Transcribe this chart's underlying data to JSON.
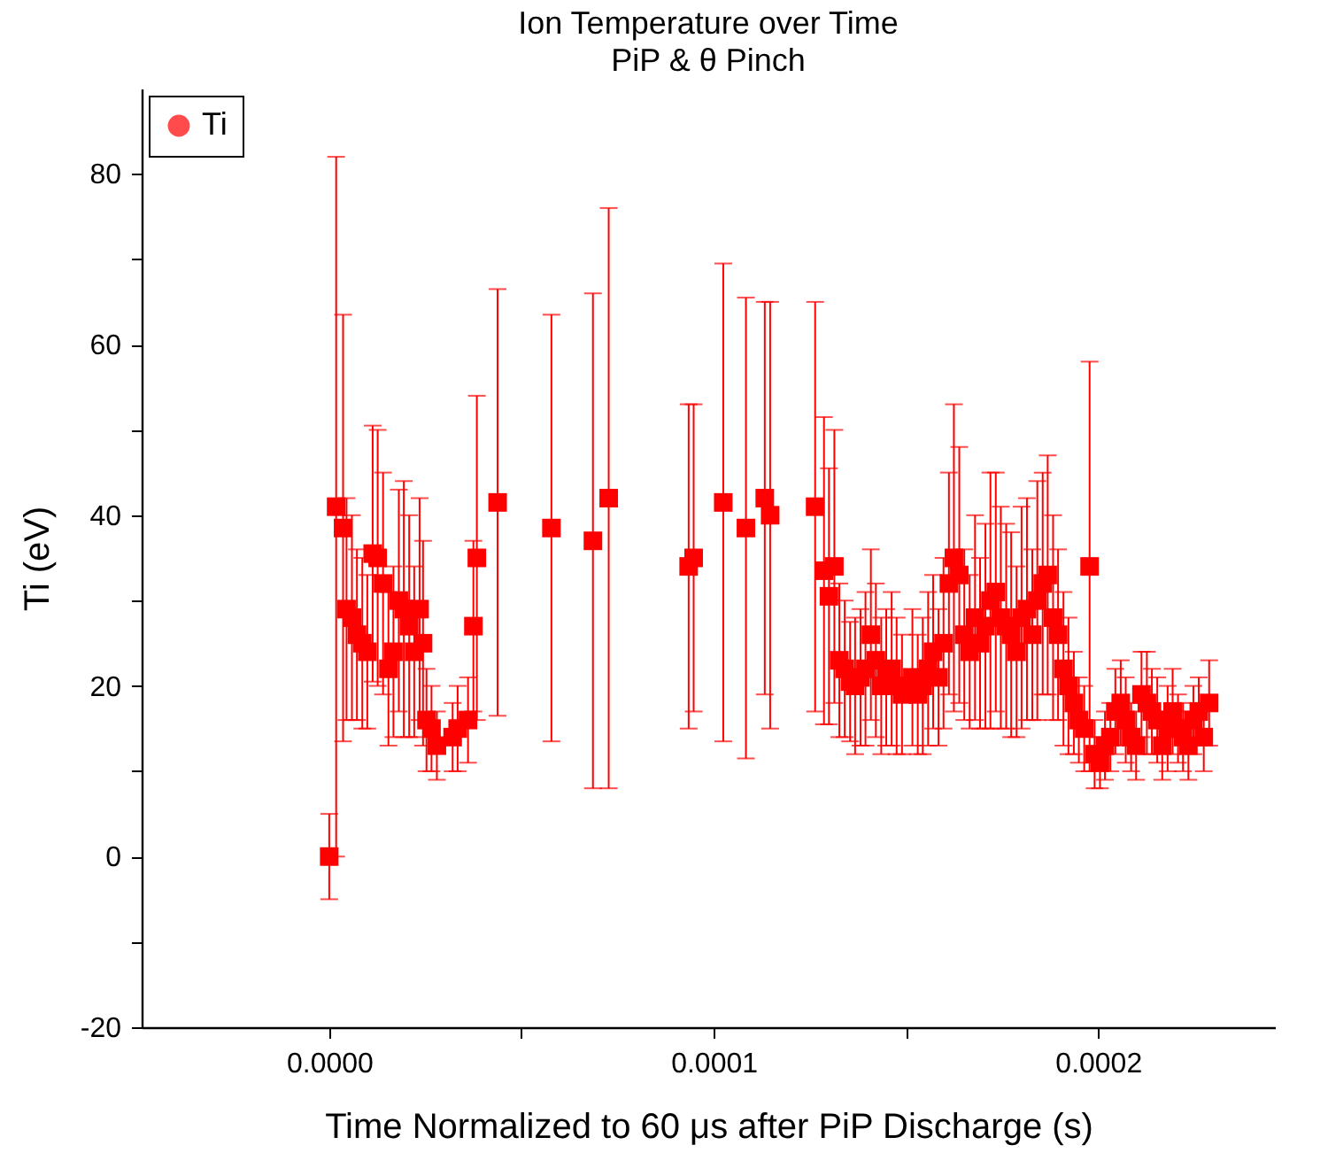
{
  "chart_data": {
    "type": "scatter",
    "title": "Ion Temperature over Time",
    "subtitle": "PiP & θ Pinch",
    "xlabel": "Time Normalized to 60 μs after PiP Discharge (s)",
    "ylabel": "Ti (eV)",
    "xlim": [
      -4.88e-05,
      0.000246
    ],
    "ylim": [
      -20,
      90
    ],
    "xticks": [
      {
        "value": 0,
        "label": "0.0000"
      },
      {
        "value": 5e-05,
        "label": null
      },
      {
        "value": 0.0001,
        "label": "0.0001"
      },
      {
        "value": 0.00015,
        "label": null
      },
      {
        "value": 0.0002,
        "label": "0.0002"
      }
    ],
    "yticks": [
      -20,
      {
        "value": -10,
        "label": null
      },
      0,
      {
        "value": 10,
        "label": null
      },
      20,
      {
        "value": 30,
        "label": null
      },
      40,
      {
        "value": 50,
        "label": null
      },
      60,
      {
        "value": 70,
        "label": null
      },
      80
    ],
    "grid": false,
    "legend": "top left",
    "marker": "square",
    "series": [
      {
        "name": "Ti",
        "color": "#ff0000",
        "x": [
          0.0,
          1.8e-06,
          3.6e-06,
          4.5e-06,
          5.9e-06,
          7.2e-06,
          8.6e-06,
          9.9e-06,
          1.13e-05,
          1.26e-05,
          1.4e-05,
          1.54e-05,
          1.67e-05,
          1.81e-05,
          1.94e-05,
          2.08e-05,
          2.21e-05,
          2.35e-05,
          2.44e-05,
          2.53e-05,
          2.66e-05,
          2.8e-05,
          3.21e-05,
          3.34e-05,
          3.61e-05,
          3.75e-05,
          3.84e-05,
          4.38e-05,
          5.78e-05,
          6.86e-05,
          7.27e-05,
          9.35e-05,
          9.48e-05,
          0.0001025,
          0.0001084,
          0.0001133,
          0.0001147,
          0.0001264,
          0.0001287,
          0.00013,
          0.0001314,
          0.0001327,
          0.0001341,
          0.0001355,
          0.0001368,
          0.0001382,
          0.0001395,
          0.0001409,
          0.0001422,
          0.0001436,
          0.0001449,
          0.0001463,
          0.0001476,
          0.000149,
          0.0001517,
          0.0001531,
          0.0001544,
          0.0001558,
          0.0001571,
          0.0001585,
          0.0001598,
          0.0001612,
          0.0001625,
          0.0001639,
          0.0001652,
          0.0001666,
          0.000168,
          0.0001693,
          0.0001707,
          0.000172,
          0.0001734,
          0.0001747,
          0.0001761,
          0.0001774,
          0.0001788,
          0.0001801,
          0.0001815,
          0.0001829,
          0.0001842,
          0.0001856,
          0.0001869,
          0.0001883,
          0.0001896,
          0.000191,
          0.0001923,
          0.0001937,
          0.000195,
          0.0001964,
          0.0001978,
          0.0001991,
          0.0002005,
          0.0002018,
          0.0002032,
          0.0002045,
          0.0002059,
          0.0002072,
          0.0002086,
          0.0002099,
          0.0002113,
          0.0002127,
          0.000214,
          0.0002154,
          0.0002167,
          0.0002181,
          0.0002194,
          0.0002208,
          0.0002221,
          0.0002235,
          0.0002248,
          0.0002262,
          0.0002275,
          0.0002289
        ],
        "values": [
          0,
          41,
          38.5,
          29,
          28,
          26,
          25,
          24,
          35.5,
          35,
          32,
          22,
          24,
          30,
          29,
          27,
          24,
          29,
          25,
          16,
          15,
          13,
          14,
          15,
          16,
          27,
          35,
          41.5,
          38.5,
          37,
          42,
          34,
          35,
          41.5,
          38.5,
          42,
          40,
          41,
          33.5,
          30.5,
          34,
          23,
          22,
          20.5,
          20,
          21,
          22,
          26,
          23,
          20,
          21,
          22,
          20,
          19,
          21,
          19,
          20,
          22,
          24,
          21,
          25,
          32,
          35,
          33,
          26,
          24,
          28,
          25,
          27,
          30,
          31,
          28,
          27,
          26,
          24,
          28,
          29,
          26,
          30,
          32,
          33,
          28,
          26,
          22,
          20,
          18,
          16,
          15,
          34,
          12,
          11,
          13,
          14,
          17,
          18,
          16,
          14,
          13,
          19,
          18,
          17,
          16,
          13,
          15,
          17,
          15,
          14,
          13,
          16,
          17,
          14,
          18
        ],
        "errors": [
          5,
          41,
          25,
          13,
          12,
          10,
          10,
          9,
          15,
          15,
          13,
          9,
          10,
          13,
          15,
          13,
          10,
          13,
          12,
          6,
          5,
          4,
          4,
          5,
          5,
          10,
          19,
          25,
          25,
          29,
          34,
          19,
          18,
          28,
          27,
          23,
          25,
          24,
          18,
          15,
          16,
          9,
          8,
          7,
          8,
          8,
          9,
          10,
          9,
          8,
          8,
          9,
          8,
          7,
          8,
          7,
          8,
          9,
          9,
          8,
          10,
          13,
          18,
          15,
          10,
          9,
          12,
          10,
          12,
          15,
          14,
          13,
          12,
          12,
          10,
          13,
          13,
          10,
          14,
          13,
          14,
          12,
          10,
          9,
          8,
          6,
          5,
          5,
          24,
          4,
          3,
          4,
          4,
          5,
          5,
          5,
          4,
          4,
          5,
          6,
          5,
          5,
          4,
          5,
          5,
          4,
          4,
          4,
          4,
          4,
          4,
          5
        ]
      }
    ]
  }
}
